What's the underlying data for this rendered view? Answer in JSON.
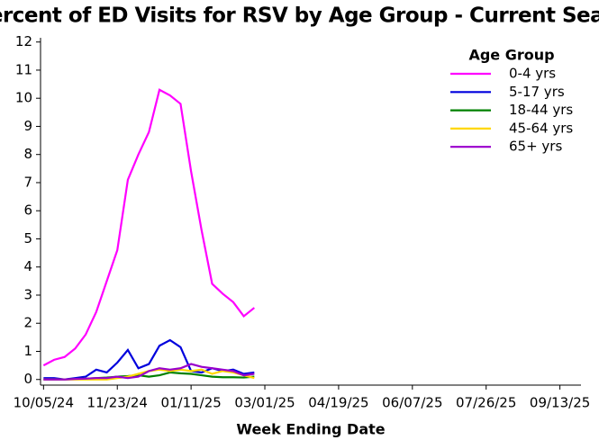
{
  "chart_data": {
    "type": "line",
    "title": "Percent of ED Visits for RSV by Age Group - Current Season",
    "x_label": "Week Ending Date",
    "legend_title": "Age Group",
    "legend": "upper right",
    "x": [
      "10/05/24",
      "10/12/24",
      "10/19/24",
      "10/26/24",
      "11/02/24",
      "11/09/24",
      "11/16/24",
      "11/23/24",
      "11/30/24",
      "12/07/24",
      "12/14/24",
      "12/21/24",
      "12/28/24",
      "01/04/25",
      "01/11/25",
      "01/18/25",
      "01/25/25",
      "02/01/25",
      "02/08/25",
      "02/15/25",
      "02/22/25"
    ],
    "series": [
      {
        "name": "0-4 yrs",
        "color": "#ff00ff",
        "values": [
          0.5,
          0.7,
          0.8,
          1.1,
          1.6,
          2.4,
          3.5,
          4.6,
          7.1,
          8.0,
          8.8,
          10.3,
          10.1,
          9.8,
          7.4,
          5.3,
          3.4,
          3.05,
          2.75,
          2.25,
          2.55
        ]
      },
      {
        "name": "5-17 yrs",
        "color": "#0000dd",
        "values": [
          0.05,
          0.05,
          0.0,
          0.05,
          0.1,
          0.35,
          0.25,
          0.6,
          1.05,
          0.4,
          0.55,
          1.2,
          1.4,
          1.15,
          0.3,
          0.25,
          0.4,
          0.3,
          0.35,
          0.2,
          0.25
        ]
      },
      {
        "name": "18-44 yrs",
        "color": "#008000",
        "values": [
          0,
          0,
          0,
          0.02,
          0.03,
          0.05,
          0.07,
          0.1,
          0.12,
          0.15,
          0.1,
          0.15,
          0.25,
          0.22,
          0.2,
          0.15,
          0.1,
          0.08,
          0.08,
          0.07,
          0.1
        ]
      },
      {
        "name": "45-64 yrs",
        "color": "#ffd700",
        "values": [
          0,
          0,
          0,
          0,
          0,
          0,
          0,
          0.05,
          0.1,
          0.2,
          0.3,
          0.35,
          0.3,
          0.35,
          0.3,
          0.35,
          0.2,
          0.3,
          0.25,
          0.15,
          0.05
        ]
      },
      {
        "name": "65+ yrs",
        "color": "#9900cc",
        "values": [
          0,
          0,
          0,
          0.02,
          0.03,
          0.05,
          0.05,
          0.1,
          0.05,
          0.1,
          0.3,
          0.4,
          0.35,
          0.4,
          0.55,
          0.45,
          0.4,
          0.35,
          0.3,
          0.15,
          0.2
        ]
      }
    ],
    "xlim": [
      "10/03/24",
      "09/27/25"
    ],
    "xticks": [
      "10/05/24",
      "11/23/24",
      "01/11/25",
      "03/01/25",
      "04/19/25",
      "06/07/25",
      "07/26/25",
      "09/13/25"
    ],
    "ylim": [
      -0.2,
      12.15
    ],
    "yticks": [
      0,
      1,
      2,
      3,
      4,
      5,
      6,
      7,
      8,
      9,
      10,
      11,
      12
    ]
  }
}
